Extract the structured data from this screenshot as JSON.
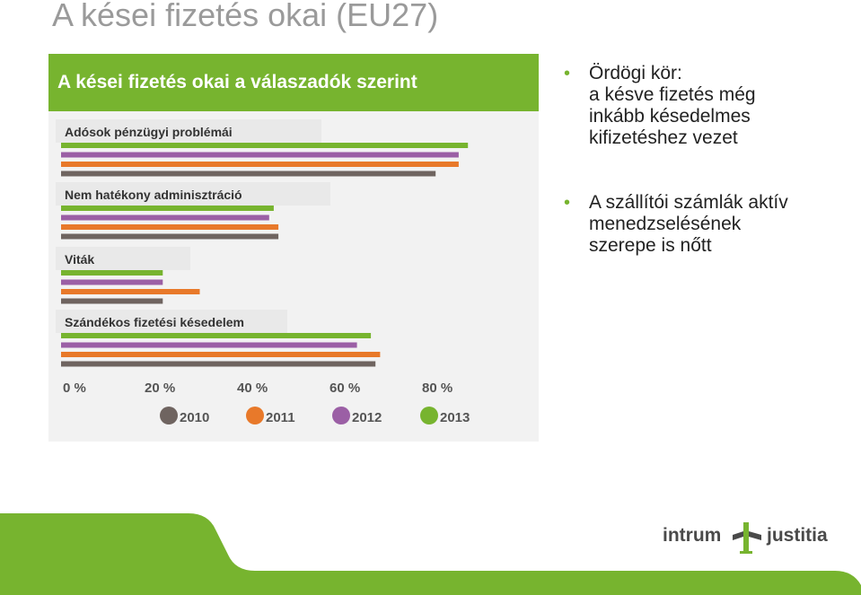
{
  "slide": {
    "title": "A kései fizetés okai (EU27)"
  },
  "chart_data": {
    "type": "bar",
    "orientation": "horizontal",
    "title": "A kései fizetés okai a válaszadók szerint",
    "categories": [
      "Adósok pénzügyi problémái",
      "Nem hatékony adminisztráció",
      "Viták",
      "Szándékos fizetési késedelem"
    ],
    "series": [
      {
        "name": "2013",
        "color": "#77b42f",
        "values": [
          88,
          46,
          22,
          67
        ]
      },
      {
        "name": "2012",
        "color": "#9b5fa5",
        "values": [
          86,
          45,
          22,
          64
        ]
      },
      {
        "name": "2011",
        "color": "#e8792a",
        "values": [
          86,
          47,
          30,
          69
        ]
      },
      {
        "name": "2010",
        "color": "#6f6460",
        "values": [
          81,
          47,
          22,
          68
        ]
      }
    ],
    "xaxis": {
      "min": 0,
      "max": 90,
      "ticks": [
        "0 %",
        "20 %",
        "40 %",
        "60 %",
        "80 %"
      ]
    },
    "legend": {
      "position": "bottom",
      "items": [
        {
          "label": "2010",
          "color": "#6f6460"
        },
        {
          "label": "2011",
          "color": "#e8792a"
        },
        {
          "label": "2012",
          "color": "#9b5fa5"
        },
        {
          "label": "2013",
          "color": "#77b42f"
        }
      ]
    },
    "grid": false
  },
  "bullets": [
    {
      "text": "Ördögi kör:\na késve fizetés még\ninkább késedelmes\nkifizetéshez vezet"
    },
    {
      "text": "A szállítói számlák aktív\nmenedzselésének\nszerepe is nőtt"
    }
  ],
  "logo": {
    "left_word": "intrum",
    "right_word": "justitia",
    "icon": "intrum-justitia-logo-icon"
  },
  "colors": {
    "accent_green": "#77b42f",
    "footer_green": "#77b42f",
    "title_gray": "#9a9a9a"
  }
}
